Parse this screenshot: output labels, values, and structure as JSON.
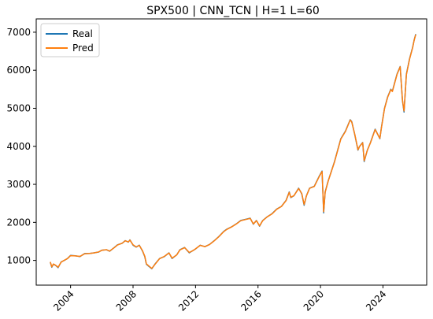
{
  "chart_data": {
    "type": "line",
    "title": "SPX500 | CNN_TCN | H=1 L=60",
    "xlabel": "",
    "ylabel": "",
    "xlim": [
      2001.8,
      2026.8
    ],
    "ylim": [
      350,
      7350
    ],
    "grid": false,
    "legend_position": "top-left",
    "x_ticks": [
      2004,
      2008,
      2012,
      2016,
      2020,
      2024
    ],
    "x_tick_labels": [
      "2004",
      "2008",
      "2012",
      "2016",
      "2020",
      "2024"
    ],
    "y_ticks": [
      1000,
      2000,
      3000,
      4000,
      5000,
      6000,
      7000
    ],
    "y_tick_labels": [
      "1000",
      "2000",
      "3000",
      "4000",
      "5000",
      "6000",
      "7000"
    ],
    "series": [
      {
        "name": "Real",
        "color": "#1f77b4",
        "x": [
          2002.7,
          2002.8,
          2002.9,
          2003.0,
          2003.1,
          2003.2,
          2003.4,
          2003.6,
          2003.8,
          2004.0,
          2004.3,
          2004.6,
          2004.9,
          2005.2,
          2005.5,
          2005.8,
          2006.0,
          2006.3,
          2006.5,
          2006.8,
          2007.0,
          2007.3,
          2007.5,
          2007.7,
          2007.8,
          2008.0,
          2008.2,
          2008.4,
          2008.6,
          2008.75,
          2008.85,
          2009.0,
          2009.2,
          2009.4,
          2009.7,
          2010.0,
          2010.3,
          2010.5,
          2010.8,
          2011.0,
          2011.3,
          2011.6,
          2011.8,
          2012.0,
          2012.3,
          2012.6,
          2012.9,
          2013.2,
          2013.5,
          2013.8,
          2014.0,
          2014.3,
          2014.6,
          2014.9,
          2015.2,
          2015.5,
          2015.7,
          2015.9,
          2016.1,
          2016.3,
          2016.6,
          2016.9,
          2017.2,
          2017.5,
          2017.8,
          2018.0,
          2018.1,
          2018.3,
          2018.6,
          2018.8,
          2018.95,
          2019.1,
          2019.3,
          2019.6,
          2019.9,
          2020.1,
          2020.2,
          2020.3,
          2020.5,
          2020.7,
          2020.9,
          2021.1,
          2021.3,
          2021.6,
          2021.9,
          2022.0,
          2022.2,
          2022.4,
          2022.5,
          2022.7,
          2022.8,
          2023.0,
          2023.2,
          2023.5,
          2023.8,
          2023.9,
          2024.1,
          2024.3,
          2024.5,
          2024.6,
          2024.9,
          2025.1,
          2025.25,
          2025.35,
          2025.5,
          2025.7,
          2025.9,
          2026.0,
          2026.1
        ],
        "y": [
          950,
          820,
          900,
          880,
          850,
          810,
          960,
          1000,
          1050,
          1130,
          1120,
          1100,
          1180,
          1180,
          1200,
          1220,
          1270,
          1280,
          1240,
          1340,
          1410,
          1450,
          1520,
          1480,
          1540,
          1400,
          1350,
          1400,
          1250,
          1100,
          900,
          850,
          780,
          900,
          1050,
          1100,
          1200,
          1050,
          1150,
          1280,
          1340,
          1200,
          1250,
          1300,
          1400,
          1360,
          1420,
          1520,
          1630,
          1760,
          1820,
          1880,
          1960,
          2050,
          2080,
          2110,
          1950,
          2050,
          1900,
          2050,
          2150,
          2230,
          2350,
          2420,
          2580,
          2800,
          2650,
          2700,
          2900,
          2750,
          2450,
          2700,
          2900,
          2950,
          3200,
          3350,
          2250,
          2800,
          3100,
          3350,
          3600,
          3900,
          4200,
          4400,
          4700,
          4650,
          4300,
          3900,
          4000,
          4100,
          3600,
          3900,
          4100,
          4450,
          4200,
          4500,
          5000,
          5300,
          5500,
          5450,
          5900,
          6100,
          5200,
          4900,
          5900,
          6300,
          6600,
          6800,
          6950
        ]
      },
      {
        "name": "Pred",
        "color": "#ff7f0e",
        "x": [
          2002.7,
          2002.8,
          2002.9,
          2003.0,
          2003.1,
          2003.2,
          2003.4,
          2003.6,
          2003.8,
          2004.0,
          2004.3,
          2004.6,
          2004.9,
          2005.2,
          2005.5,
          2005.8,
          2006.0,
          2006.3,
          2006.5,
          2006.8,
          2007.0,
          2007.3,
          2007.5,
          2007.7,
          2007.8,
          2008.0,
          2008.2,
          2008.4,
          2008.6,
          2008.75,
          2008.85,
          2009.0,
          2009.2,
          2009.4,
          2009.7,
          2010.0,
          2010.3,
          2010.5,
          2010.8,
          2011.0,
          2011.3,
          2011.6,
          2011.8,
          2012.0,
          2012.3,
          2012.6,
          2012.9,
          2013.2,
          2013.5,
          2013.8,
          2014.0,
          2014.3,
          2014.6,
          2014.9,
          2015.2,
          2015.5,
          2015.7,
          2015.9,
          2016.1,
          2016.3,
          2016.6,
          2016.9,
          2017.2,
          2017.5,
          2017.8,
          2018.0,
          2018.1,
          2018.3,
          2018.6,
          2018.8,
          2018.95,
          2019.1,
          2019.3,
          2019.6,
          2019.9,
          2020.1,
          2020.2,
          2020.3,
          2020.5,
          2020.7,
          2020.9,
          2021.1,
          2021.3,
          2021.6,
          2021.9,
          2022.0,
          2022.2,
          2022.4,
          2022.5,
          2022.7,
          2022.8,
          2023.0,
          2023.2,
          2023.5,
          2023.8,
          2023.9,
          2024.1,
          2024.3,
          2024.5,
          2024.6,
          2024.9,
          2025.1,
          2025.25,
          2025.35,
          2025.5,
          2025.7,
          2025.9,
          2026.0,
          2026.1
        ],
        "y": [
          960,
          830,
          905,
          885,
          855,
          820,
          955,
          1005,
          1048,
          1125,
          1118,
          1105,
          1175,
          1182,
          1198,
          1225,
          1265,
          1282,
          1245,
          1335,
          1405,
          1452,
          1515,
          1485,
          1535,
          1410,
          1355,
          1395,
          1260,
          1110,
          910,
          860,
          790,
          895,
          1045,
          1105,
          1195,
          1060,
          1148,
          1275,
          1335,
          1210,
          1248,
          1305,
          1395,
          1362,
          1418,
          1515,
          1625,
          1755,
          1815,
          1878,
          1955,
          2045,
          2075,
          2105,
          1960,
          2045,
          1910,
          2045,
          2148,
          2225,
          2345,
          2418,
          2575,
          2790,
          2660,
          2705,
          2890,
          2760,
          2470,
          2695,
          2895,
          2945,
          3190,
          3340,
          2280,
          2790,
          3095,
          3345,
          3590,
          3890,
          4190,
          4390,
          4690,
          4640,
          4310,
          3910,
          3995,
          4095,
          3620,
          3895,
          4095,
          4440,
          4210,
          4490,
          4990,
          5290,
          5490,
          5440,
          5890,
          6090,
          5220,
          4930,
          5880,
          6290,
          6590,
          6790,
          6940
        ]
      }
    ]
  }
}
